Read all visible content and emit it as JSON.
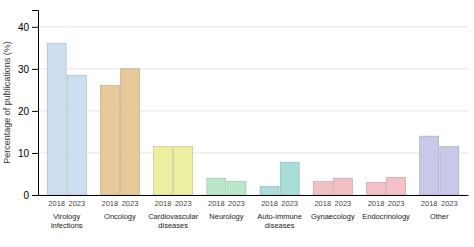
{
  "chart_data": {
    "type": "bar",
    "categories": [
      "Virology\ninfections",
      "Oncology",
      "Cardiovascular\ndiseases",
      "Neurology",
      "Auto-immune\ndiseases",
      "Gynaecology",
      "Endocrinology",
      "Other"
    ],
    "series": [
      {
        "name": "2018",
        "values": [
          36,
          26,
          11.5,
          4.0,
          2.0,
          3.2,
          3.0,
          14.0
        ]
      },
      {
        "name": "2023",
        "values": [
          28.5,
          30,
          11.5,
          3.2,
          7.8,
          4.0,
          4.2,
          11.5
        ]
      }
    ],
    "colors": [
      "#ccdff0",
      "#e8c99a",
      "#ecefa0",
      "#b8e8c8",
      "#a8ddd8",
      "#f0c0c4",
      "#f5c0c8",
      "#c8c8e8"
    ],
    "ylabel": "Percentage of publications (%)",
    "ylim": [
      0,
      44
    ],
    "yticks": [
      0,
      10,
      20,
      30,
      40
    ],
    "grid": true
  }
}
